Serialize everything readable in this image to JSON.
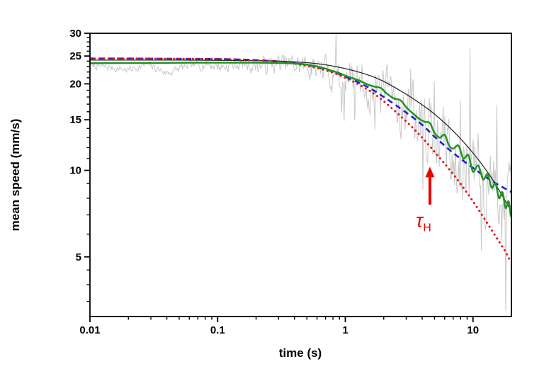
{
  "chart_data": {
    "type": "line",
    "title": "",
    "xlabel": "time (s)",
    "ylabel": "mean speed (mm/s)",
    "x_scale": "log",
    "y_scale": "log",
    "xlim": [
      0.01,
      20
    ],
    "ylim": [
      3.1,
      30
    ],
    "grid": false,
    "legend": "none",
    "frame_color": "#000000",
    "x_major_ticks": [
      0.01,
      0.1,
      1,
      10
    ],
    "x_major_tick_labels": [
      "0.01",
      "0.1",
      "1",
      "10"
    ],
    "x_minor_ticks": [
      0.02,
      0.03,
      0.04,
      0.05,
      0.06,
      0.07,
      0.08,
      0.09,
      0.2,
      0.3,
      0.4,
      0.5,
      0.6,
      0.7,
      0.8,
      0.9,
      2,
      3,
      4,
      5,
      6,
      7,
      8,
      9
    ],
    "y_major_ticks": [
      5,
      10,
      15,
      20,
      25,
      30
    ],
    "y_major_tick_labels": [
      "5",
      "10",
      "15",
      "20",
      "25",
      "30"
    ],
    "y_minor_ticks": [
      3.5,
      4,
      4.5,
      6,
      7,
      8,
      9,
      11,
      12,
      13,
      14,
      16,
      17,
      18,
      19,
      21,
      22,
      23,
      24,
      26,
      27,
      28,
      29
    ],
    "series": [
      {
        "name": "raw-speed-trace",
        "type": "noisy-line",
        "color": "#c8c8c8",
        "width": 1,
        "center_points": [
          [
            0.01,
            23.2
          ],
          [
            0.014,
            22.8
          ],
          [
            0.02,
            22.4
          ],
          [
            0.028,
            23.3
          ],
          [
            0.04,
            21.8
          ],
          [
            0.055,
            22.9
          ],
          [
            0.08,
            23.5
          ],
          [
            0.11,
            22.9
          ],
          [
            0.15,
            23.5
          ],
          [
            0.22,
            23.1
          ],
          [
            0.3,
            23.5
          ],
          [
            0.4,
            23.3
          ],
          [
            0.5,
            23.1
          ],
          [
            0.7,
            22.3
          ],
          [
            1,
            20.9
          ],
          [
            1.5,
            19.7
          ],
          [
            2,
            18.2
          ],
          [
            3,
            16.4
          ],
          [
            4,
            14.8
          ],
          [
            5,
            13.4
          ],
          [
            7,
            11.8
          ],
          [
            10,
            9.9
          ],
          [
            14,
            8.6
          ],
          [
            20,
            6.8
          ]
        ],
        "noise": {
          "seed": 7,
          "samples": 520,
          "ar": 0.45,
          "amp_nodes": [
            [
              -2,
              0.01
            ],
            [
              -1.3,
              0.013
            ],
            [
              -1,
              0.018
            ],
            [
              -0.5,
              0.03
            ],
            [
              -0.2,
              0.042
            ],
            [
              0,
              0.055
            ],
            [
              0.3,
              0.08
            ],
            [
              0.6,
              0.1
            ],
            [
              1,
              0.115
            ],
            [
              1.301,
              0.135
            ]
          ],
          "spike_threshold_t": 0.5,
          "spike_prob": 0.045
        }
      },
      {
        "name": "model-fit-thin-black",
        "type": "line",
        "style": "solid",
        "color": "#2a2a2a",
        "width": 1.3,
        "points": [
          [
            0.01,
            24.2
          ],
          [
            0.05,
            24.2
          ],
          [
            0.1,
            24.15
          ],
          [
            0.2,
            24.1
          ],
          [
            0.3,
            24.0
          ],
          [
            0.5,
            23.7
          ],
          [
            0.7,
            23.3
          ],
          [
            1,
            22.6
          ],
          [
            1.5,
            21.5
          ],
          [
            2,
            20.4
          ],
          [
            3,
            18.4
          ],
          [
            4,
            16.9
          ],
          [
            5,
            15.7
          ],
          [
            7,
            13.7
          ],
          [
            10,
            11.5
          ],
          [
            14,
            9.4
          ],
          [
            20,
            7.2
          ]
        ]
      },
      {
        "name": "model-fit-blue-dashed",
        "type": "line",
        "style": "dashed",
        "color": "#2121cc",
        "width": 2.6,
        "points": [
          [
            0.01,
            24.5
          ],
          [
            0.02,
            24.5
          ],
          [
            0.05,
            24.45
          ],
          [
            0.1,
            24.4
          ],
          [
            0.15,
            24.3
          ],
          [
            0.2,
            24.2
          ],
          [
            0.3,
            23.95
          ],
          [
            0.4,
            23.6
          ],
          [
            0.5,
            23.3
          ],
          [
            0.7,
            22.5
          ],
          [
            1,
            21.2
          ],
          [
            1.5,
            19.5
          ],
          [
            2,
            18.0
          ],
          [
            3,
            15.9
          ],
          [
            4,
            14.4
          ],
          [
            5,
            13.1
          ],
          [
            7,
            11.5
          ],
          [
            10,
            10.2
          ],
          [
            14,
            9.2
          ],
          [
            20,
            8.4
          ]
        ]
      },
      {
        "name": "model-fit-red-dotted",
        "type": "line",
        "style": "dotted",
        "color": "#e31212",
        "width": 3,
        "points": [
          [
            0.01,
            24.5
          ],
          [
            0.02,
            24.5
          ],
          [
            0.05,
            24.45
          ],
          [
            0.1,
            24.4
          ],
          [
            0.15,
            24.3
          ],
          [
            0.2,
            24.2
          ],
          [
            0.3,
            23.9
          ],
          [
            0.4,
            23.5
          ],
          [
            0.5,
            23.1
          ],
          [
            0.7,
            22.3
          ],
          [
            1,
            21.0
          ],
          [
            1.5,
            19.1
          ],
          [
            2,
            17.4
          ],
          [
            3,
            14.8
          ],
          [
            4,
            13.0
          ],
          [
            5,
            11.6
          ],
          [
            7,
            9.7
          ],
          [
            10,
            7.8
          ],
          [
            14,
            6.2
          ],
          [
            18,
            5.2
          ],
          [
            19.5,
            4.85
          ]
        ]
      },
      {
        "name": "smoothed-speed-green",
        "type": "line",
        "style": "solid",
        "color": "#1e941e",
        "width": 2.5,
        "points": [
          [
            0.01,
            23.6
          ],
          [
            0.03,
            23.65
          ],
          [
            0.07,
            23.7
          ],
          [
            0.12,
            23.7
          ],
          [
            0.2,
            23.7
          ],
          [
            0.3,
            23.65
          ],
          [
            0.4,
            23.55
          ],
          [
            0.5,
            23.35
          ],
          [
            0.6,
            23.0
          ],
          [
            0.7,
            22.6
          ],
          [
            0.8,
            22.15
          ],
          [
            0.9,
            21.8
          ],
          [
            1.0,
            21.35
          ],
          [
            1.15,
            20.9
          ],
          [
            1.3,
            20.5
          ],
          [
            1.5,
            19.9
          ],
          [
            1.7,
            19.55
          ],
          [
            1.9,
            19.35
          ],
          [
            2.1,
            18.55
          ],
          [
            2.4,
            17.8
          ],
          [
            2.7,
            17.55
          ],
          [
            3.0,
            16.6
          ],
          [
            3.4,
            15.75
          ],
          [
            3.8,
            15.1
          ],
          [
            4.2,
            14.75
          ],
          [
            4.6,
            14.6
          ],
          [
            5.0,
            13.5
          ],
          [
            5.5,
            13.0
          ],
          [
            6.0,
            13.3
          ],
          [
            6.5,
            12.2
          ],
          [
            7.0,
            11.9
          ],
          [
            7.7,
            12.2
          ],
          [
            8.4,
            11.0
          ],
          [
            9.2,
            11.3
          ],
          [
            10,
            9.9
          ],
          [
            11,
            10.4
          ],
          [
            12,
            9.3
          ],
          [
            13,
            9.7
          ],
          [
            14,
            8.7
          ],
          [
            15,
            9.0
          ],
          [
            16,
            8.0
          ],
          [
            17,
            8.4
          ],
          [
            18,
            7.4
          ],
          [
            19,
            7.8
          ],
          [
            19.8,
            6.9
          ]
        ]
      }
    ],
    "annotation": {
      "symbol": "τ",
      "subscript": "H",
      "color": "#ee0000",
      "arrow_t": 4.6,
      "arrow_from_v": 7.6,
      "arrow_to_v": 10.3,
      "label_t": 4.1,
      "label_v": 6.35
    }
  }
}
